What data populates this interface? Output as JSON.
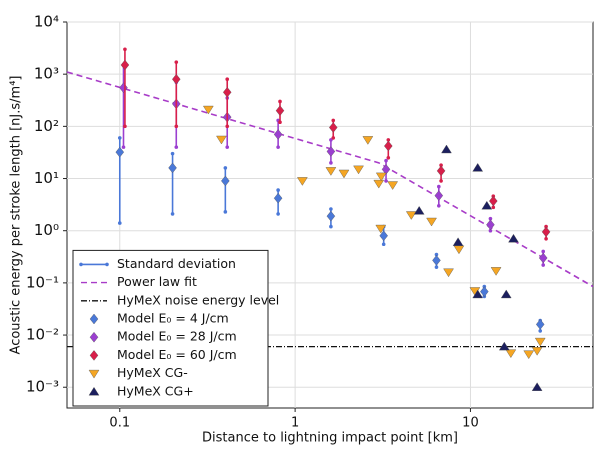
{
  "chart_data": {
    "type": "scatter",
    "xlabel": "Distance to lightning impact point [km]",
    "ylabel": "Acoustic energy per stroke length [nJ.s/m⁴]",
    "xscale": "log",
    "yscale": "log",
    "xlim": [
      0.05,
      50
    ],
    "ylim": [
      0.0004,
      10000
    ],
    "xticks": [
      0.1,
      1,
      10
    ],
    "yticks": [
      {
        "value": 0.001,
        "label": "10⁻³"
      },
      {
        "value": 0.01,
        "label": "10⁻²"
      },
      {
        "value": 0.1,
        "label": "10⁻¹"
      },
      {
        "value": 1,
        "label": "10⁰"
      },
      {
        "value": 10,
        "label": "10¹"
      },
      {
        "value": 100,
        "label": "10²"
      },
      {
        "value": 1000,
        "label": "10³"
      },
      {
        "value": 10000,
        "label": "10⁴"
      }
    ],
    "grid": true,
    "legend": "lower left",
    "error_bar_label": "Standard deviation",
    "error_bar_color": "#4a78d8",
    "series": [
      {
        "name": "Power law fit",
        "kind": "line",
        "style": "dashed",
        "color": "#a83cc8",
        "x": [
          0.05,
          3,
          50
        ],
        "values": [
          1100,
          20,
          0.085
        ]
      },
      {
        "name": "HyMeX noise energy level",
        "kind": "hline",
        "style": "dashdot",
        "color": "#111111",
        "value": 0.006
      },
      {
        "name": "Model E₀ = 4 J/cm",
        "kind": "errorscatter",
        "marker": "diamond",
        "color": "#4a78d8",
        "x": [
          0.1,
          0.2,
          0.4,
          0.8,
          1.6,
          3.2,
          6.4,
          12,
          25
        ],
        "values": [
          32,
          16,
          9,
          4.2,
          1.9,
          0.8,
          0.27,
          0.068,
          0.016
        ],
        "low": [
          1.4,
          2.1,
          2.3,
          2.1,
          1.2,
          0.55,
          0.2,
          0.055,
          0.012
        ],
        "high": [
          60,
          30,
          16,
          6,
          2.6,
          1.2,
          0.35,
          0.085,
          0.019
        ]
      },
      {
        "name": "Model E₀ = 28 J/cm",
        "kind": "errorscatter",
        "marker": "diamond",
        "color": "#9b3fd0",
        "x": [
          0.105,
          0.21,
          0.41,
          0.8,
          1.6,
          3.3,
          6.6,
          13,
          26
        ],
        "values": [
          550,
          270,
          150,
          70,
          33,
          15,
          4.7,
          1.3,
          0.3
        ],
        "low": [
          40,
          40,
          40,
          40,
          20,
          9,
          3,
          1.0,
          0.22
        ],
        "high": [
          1500,
          700,
          350,
          130,
          55,
          22,
          7,
          1.7,
          0.4
        ]
      },
      {
        "name": "Model E₀ = 60 J/cm",
        "kind": "errorscatter",
        "marker": "diamond",
        "color": "#d81f4a",
        "x": [
          0.107,
          0.21,
          0.41,
          0.82,
          1.65,
          3.4,
          6.8,
          13.5,
          27
        ],
        "values": [
          1500,
          800,
          450,
          200,
          95,
          42,
          14,
          3.7,
          0.95
        ],
        "low": [
          100,
          100,
          100,
          120,
          60,
          25,
          9,
          2.8,
          0.7
        ],
        "high": [
          3000,
          1700,
          800,
          300,
          130,
          55,
          18,
          4.6,
          1.2
        ]
      },
      {
        "name": "HyMeX CG-",
        "kind": "scatter",
        "marker": "triangle-down",
        "color": "#f5a623",
        "x": [
          0.32,
          0.38,
          1.1,
          1.6,
          1.9,
          2.3,
          2.6,
          3.0,
          3.1,
          3.6,
          4.6,
          6.0,
          3.08,
          8.6,
          7.5,
          10.6,
          14,
          17,
          21.5,
          24,
          25
        ],
        "values": [
          210,
          56,
          9,
          14,
          12.5,
          15,
          55,
          8,
          11,
          7.5,
          2.0,
          1.5,
          1.1,
          0.44,
          0.16,
          0.07,
          0.17,
          0.0045,
          0.0043,
          0.005,
          0.0075
        ]
      },
      {
        "name": "HyMeX CG+",
        "kind": "scatter",
        "marker": "triangle-up",
        "color": "#1c1f5e",
        "x": [
          7.3,
          11,
          5.1,
          8.5,
          12.4,
          17.6,
          11,
          16,
          24,
          15.6
        ],
        "values": [
          36,
          16,
          2.4,
          0.6,
          3.0,
          0.7,
          0.06,
          0.06,
          0.001,
          0.006
        ]
      }
    ]
  }
}
